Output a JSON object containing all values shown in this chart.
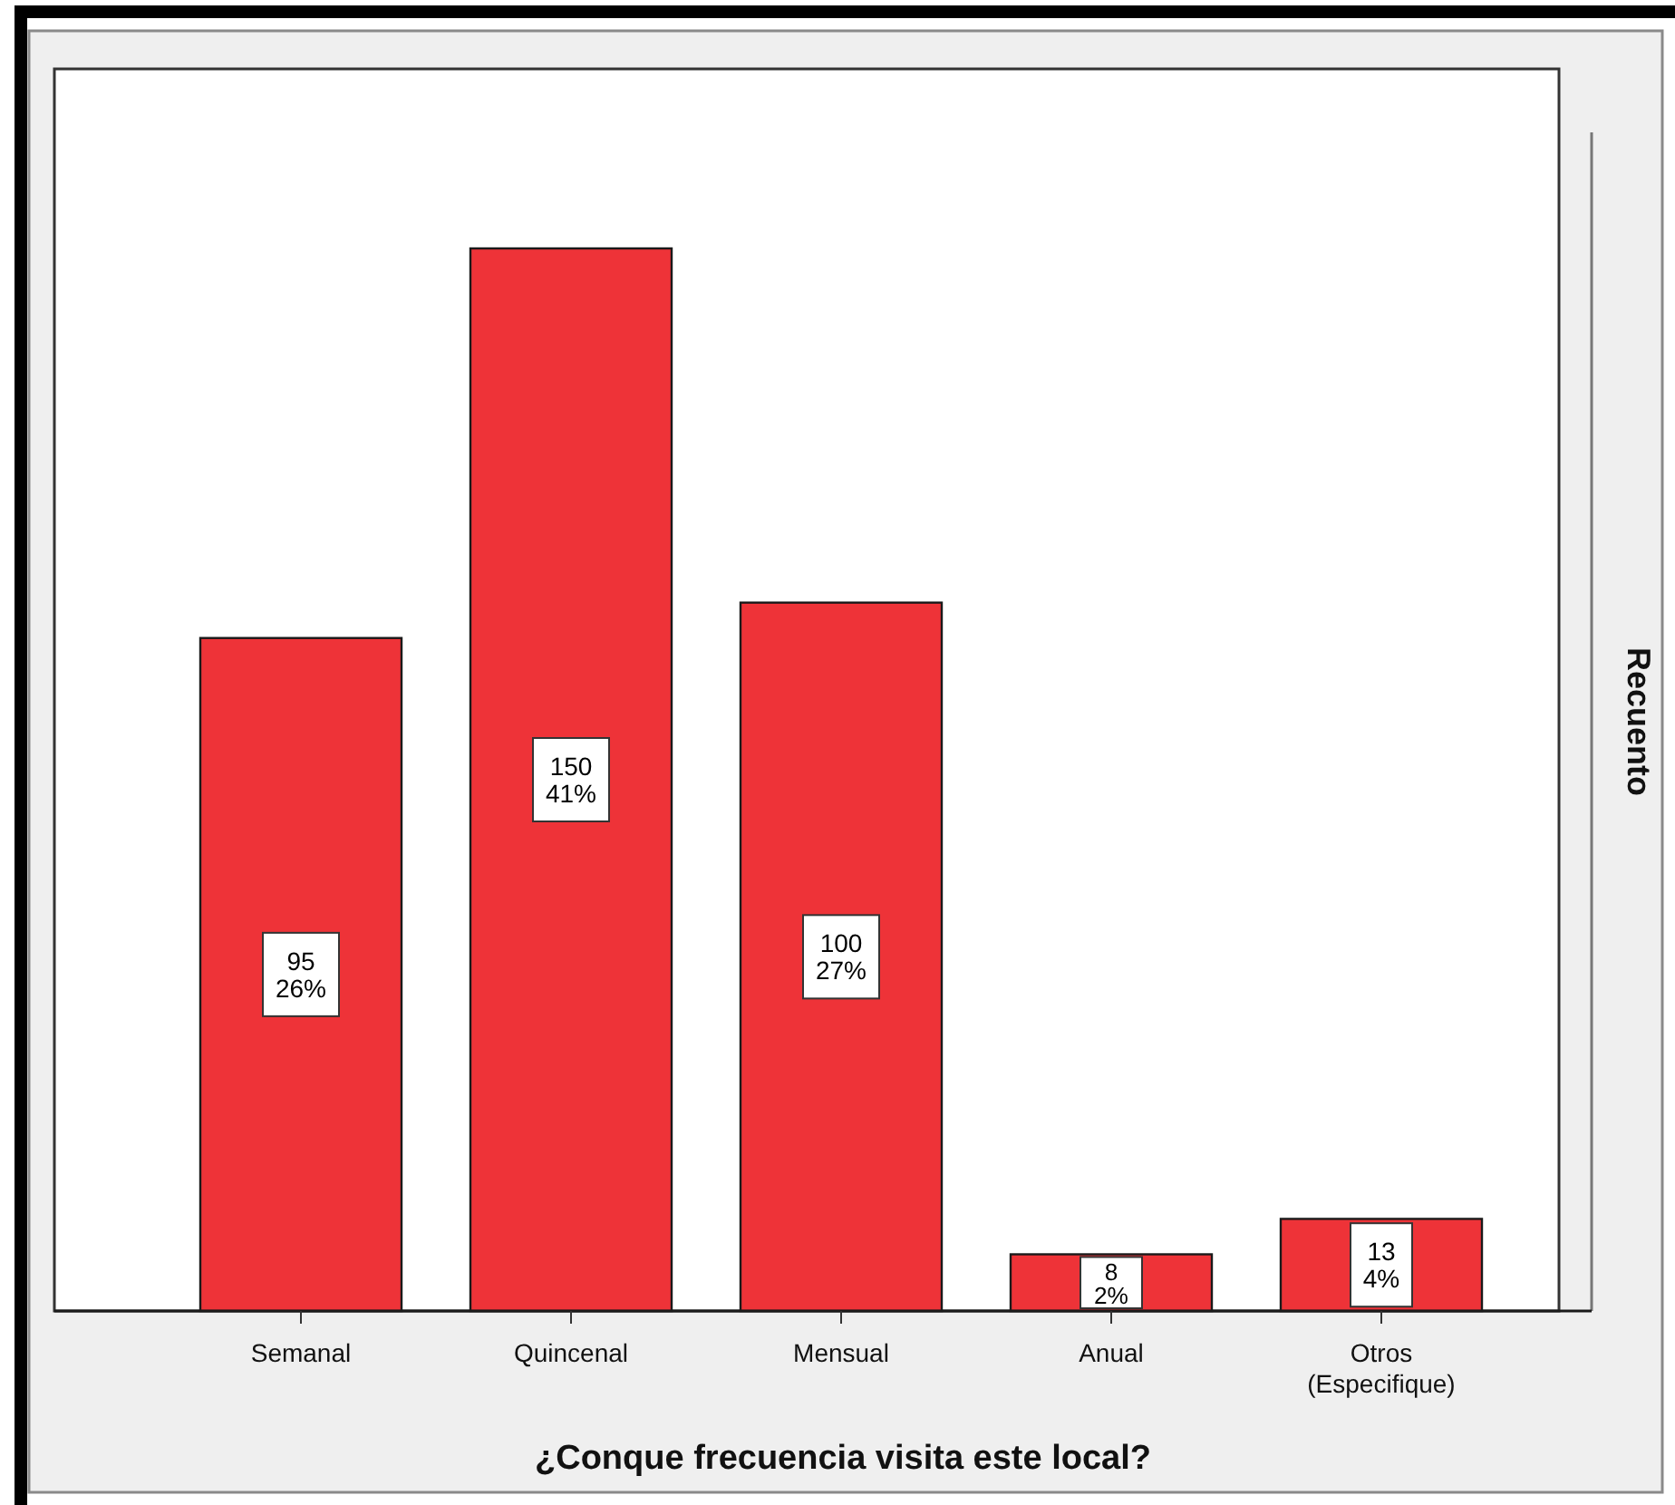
{
  "chart_data": {
    "type": "bar",
    "xlabel": "¿Conque frecuencia visita este local?",
    "ylabel": "Recuento",
    "categories": [
      "Semanal",
      "Quincenal",
      "Mensual",
      "Anual",
      "Otros\n(Especifique)"
    ],
    "values": [
      95,
      150,
      100,
      8,
      13
    ],
    "color": "#ee3338",
    "value_labels": [
      "95\n26%",
      "150\n41%",
      "100\n27%",
      "8\n2%",
      "13\n4%"
    ],
    "tick_labels": "x"
  }
}
